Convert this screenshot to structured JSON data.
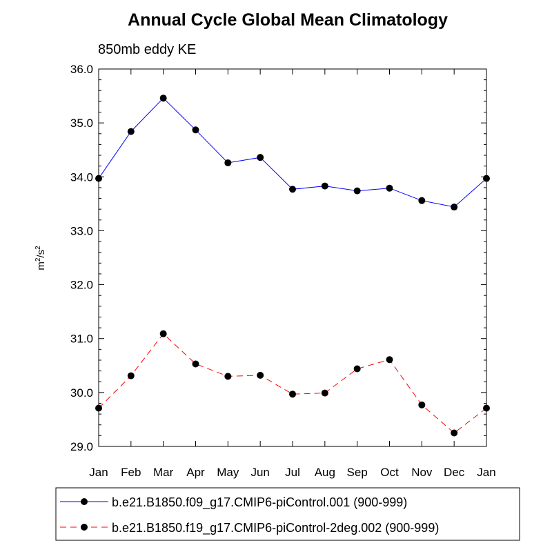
{
  "chart_data": {
    "type": "line",
    "title": "Annual Cycle Global Mean Climatology",
    "subtitle": "850mb eddy KE",
    "ylabel": {
      "base1": "m",
      "sup1": "2",
      "sep": "/s",
      "sup2": "2"
    },
    "xlabel": "",
    "categories": [
      "Jan",
      "Feb",
      "Mar",
      "Apr",
      "May",
      "Jun",
      "Jul",
      "Aug",
      "Sep",
      "Oct",
      "Nov",
      "Dec",
      "Jan"
    ],
    "ylim": [
      29.0,
      36.0
    ],
    "yticks": [
      29.0,
      30.0,
      31.0,
      32.0,
      33.0,
      34.0,
      35.0,
      36.0
    ],
    "series": [
      {
        "name": "b.e21.B1850.f09_g17.CMIP6-piControl.001 (900-999)",
        "color": "#0000ff",
        "dash": "solid",
        "values": [
          33.97,
          34.84,
          35.46,
          34.87,
          34.26,
          34.36,
          33.77,
          33.83,
          33.74,
          33.79,
          33.56,
          33.44,
          33.97
        ]
      },
      {
        "name": "b.e21.B1850.f19_g17.CMIP6-piControl-2deg.002 (900-999)",
        "color": "#ff0000",
        "dash": "dashed",
        "values": [
          29.71,
          30.31,
          31.09,
          30.53,
          30.3,
          30.32,
          29.97,
          29.99,
          30.44,
          30.61,
          29.77,
          29.25,
          29.71
        ]
      }
    ]
  }
}
